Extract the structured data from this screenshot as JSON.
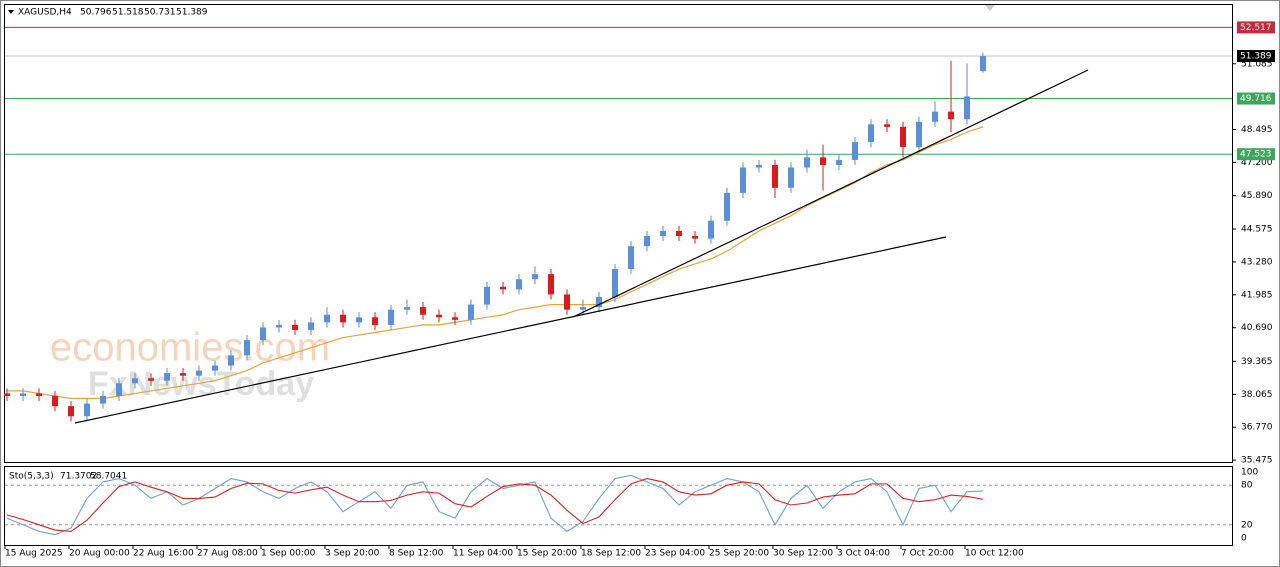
{
  "chart_data": [
    {
      "type": "candlestick",
      "title": "XAGUSD,H4",
      "watermarks": [
        "economies.com",
        "FxNewsToday"
      ],
      "categories": [
        "15 Aug 2025",
        null,
        null,
        null,
        "20 Aug 00:00",
        null,
        null,
        null,
        "22 Aug 16:00",
        null,
        null,
        null,
        "27 Aug 08:00",
        null,
        null,
        null,
        "1 Sep 00:00",
        null,
        null,
        null,
        "3 Sep 20:00",
        null,
        null,
        null,
        "8 Sep 12:00",
        null,
        null,
        null,
        "11 Sep 04:00",
        null,
        null,
        null,
        "15 Sep 20:00",
        null,
        null,
        null,
        "18 Sep 12:00",
        null,
        null,
        null,
        "23 Sep 04:00",
        null,
        null,
        null,
        "25 Sep 20:00",
        null,
        null,
        null,
        "30 Sep 12:00",
        null,
        null,
        null,
        "3 Oct 04:00",
        null,
        null,
        null,
        "7 Oct 20:00",
        null,
        null,
        null,
        "10 Oct 12:00",
        null
      ],
      "open": [
        38.1,
        38.0,
        38.1,
        38.0,
        37.6,
        37.2,
        37.7,
        38.0,
        38.5,
        38.7,
        38.6,
        38.9,
        38.8,
        39.0,
        39.2,
        39.6,
        40.2,
        40.7,
        40.8,
        40.6,
        40.9,
        41.2,
        40.9,
        41.1,
        40.8,
        41.4,
        41.5,
        41.2,
        41.1,
        41.0,
        41.6,
        42.3,
        42.2,
        42.6,
        42.8,
        42.0,
        41.4,
        41.5,
        41.9,
        43.0,
        43.9,
        44.3,
        44.5,
        44.3,
        44.2,
        44.9,
        46.0,
        47.0,
        47.1,
        46.2,
        47.0,
        47.4,
        47.1,
        47.3,
        48.0,
        48.7,
        48.6,
        47.8,
        48.8,
        49.2,
        48.9,
        50.796
      ],
      "high": [
        38.3,
        38.3,
        38.3,
        38.2,
        37.8,
        37.9,
        38.2,
        38.7,
        38.9,
        38.9,
        39.1,
        39.1,
        39.2,
        39.4,
        39.8,
        40.4,
        40.9,
        41.0,
        41.0,
        41.1,
        41.5,
        41.4,
        41.3,
        41.3,
        41.6,
        41.8,
        41.7,
        41.4,
        41.3,
        41.8,
        42.5,
        42.5,
        42.8,
        43.1,
        43.0,
        42.2,
        41.8,
        42.1,
        43.2,
        44.1,
        44.5,
        44.7,
        44.7,
        44.5,
        45.1,
        46.2,
        47.2,
        47.3,
        47.3,
        47.2,
        47.7,
        47.9,
        47.5,
        48.2,
        48.9,
        48.9,
        48.8,
        49.0,
        49.6,
        51.2,
        51.1,
        51.518
      ],
      "low": [
        37.8,
        37.8,
        37.8,
        37.4,
        37.0,
        37.0,
        37.5,
        37.8,
        38.3,
        38.4,
        38.4,
        38.6,
        38.6,
        38.8,
        39.0,
        39.4,
        40.0,
        40.5,
        40.4,
        40.4,
        40.7,
        40.7,
        40.7,
        40.6,
        40.6,
        41.2,
        41.0,
        40.9,
        40.8,
        40.8,
        41.4,
        42.0,
        42.0,
        42.4,
        41.8,
        41.2,
        41.2,
        41.3,
        41.7,
        42.8,
        43.7,
        44.1,
        44.1,
        44.0,
        44.0,
        44.7,
        45.8,
        46.8,
        45.8,
        46.0,
        46.8,
        46.1,
        46.9,
        47.1,
        47.8,
        48.4,
        47.4,
        47.6,
        48.6,
        48.4,
        48.7,
        50.731
      ],
      "close": [
        38.0,
        38.1,
        38.0,
        37.6,
        37.2,
        37.7,
        38.0,
        38.5,
        38.7,
        38.6,
        38.9,
        38.8,
        39.0,
        39.2,
        39.6,
        40.2,
        40.7,
        40.8,
        40.6,
        40.9,
        41.2,
        40.9,
        41.1,
        40.8,
        41.4,
        41.5,
        41.2,
        41.1,
        41.0,
        41.6,
        42.3,
        42.2,
        42.6,
        42.8,
        42.0,
        41.4,
        41.5,
        41.9,
        43.0,
        43.9,
        44.3,
        44.5,
        44.3,
        44.2,
        44.9,
        46.0,
        47.0,
        47.1,
        46.2,
        47.0,
        47.4,
        47.1,
        47.3,
        48.0,
        48.7,
        48.6,
        47.8,
        48.8,
        49.2,
        48.9,
        49.8,
        51.389
      ],
      "up_color": "#5b8fd9",
      "down_color": "#d91c1c",
      "ma": {
        "color": "#e8a23a",
        "values": [
          38.2,
          38.2,
          38.1,
          38.0,
          37.9,
          37.9,
          37.9,
          38.0,
          38.1,
          38.2,
          38.3,
          38.4,
          38.5,
          38.6,
          38.8,
          39.0,
          39.3,
          39.5,
          39.7,
          39.9,
          40.1,
          40.3,
          40.4,
          40.5,
          40.6,
          40.7,
          40.8,
          40.8,
          40.9,
          41.0,
          41.1,
          41.2,
          41.4,
          41.5,
          41.6,
          41.6,
          41.6,
          41.6,
          41.8,
          42.1,
          42.4,
          42.7,
          43.0,
          43.2,
          43.4,
          43.7,
          44.1,
          44.5,
          44.8,
          45.1,
          45.5,
          45.8,
          46.1,
          46.4,
          46.8,
          47.1,
          47.3,
          47.6,
          47.9,
          48.1,
          48.4,
          48.6
        ]
      },
      "ylim": [
        35.4,
        53.4
      ],
      "yticks": [
        35.475,
        {
          "value": 36.77,
          "label": "36.770"
        },
        38.065,
        39.365,
        {
          "value": 40.69,
          "label": "40.690"
        },
        41.985,
        {
          "value": 43.28,
          "label": "43.280"
        },
        44.575,
        {
          "value": 45.89,
          "label": "45.890"
        },
        {
          "value": 47.2,
          "label": "47.200"
        },
        48.495,
        51.085
      ],
      "levels": [
        {
          "value": 52.517,
          "color": "#c8283a"
        },
        {
          "value": 49.716,
          "color": "#3aa85a"
        },
        {
          "value": 47.523,
          "color": "#3aa85a"
        }
      ],
      "price_color": "#000000"
    },
    {
      "type": "line",
      "title": "Sto(5,3,3)",
      "series": [
        {
          "color": "#6a9fe0",
          "values": [
            30,
            20,
            10,
            5,
            15,
            60,
            85,
            90,
            80,
            60,
            70,
            50,
            60,
            75,
            90,
            85,
            70,
            60,
            75,
            85,
            70,
            40,
            55,
            70,
            45,
            80,
            85,
            40,
            30,
            70,
            90,
            75,
            80,
            85,
            30,
            10,
            25,
            60,
            90,
            95,
            85,
            75,
            50,
            70,
            80,
            90,
            85,
            70,
            20,
            60,
            80,
            45,
            70,
            85,
            90,
            70,
            20,
            75,
            80,
            40,
            70,
            71.3702
          ]
        },
        {
          "color": "#d92020",
          "values": [
            35,
            28,
            20,
            12,
            10,
            27,
            53,
            78,
            85,
            77,
            70,
            60,
            60,
            62,
            75,
            83,
            82,
            72,
            68,
            73,
            77,
            65,
            55,
            55,
            57,
            65,
            70,
            68,
            52,
            47,
            63,
            78,
            82,
            80,
            65,
            42,
            22,
            32,
            58,
            82,
            90,
            85,
            70,
            65,
            67,
            80,
            85,
            82,
            58,
            50,
            53,
            62,
            65,
            67,
            82,
            82,
            60,
            55,
            58,
            65,
            63,
            58.7041
          ]
        }
      ],
      "ylim": [
        0,
        100
      ],
      "yticks": [
        0,
        20,
        80,
        100
      ]
    }
  ]
}
